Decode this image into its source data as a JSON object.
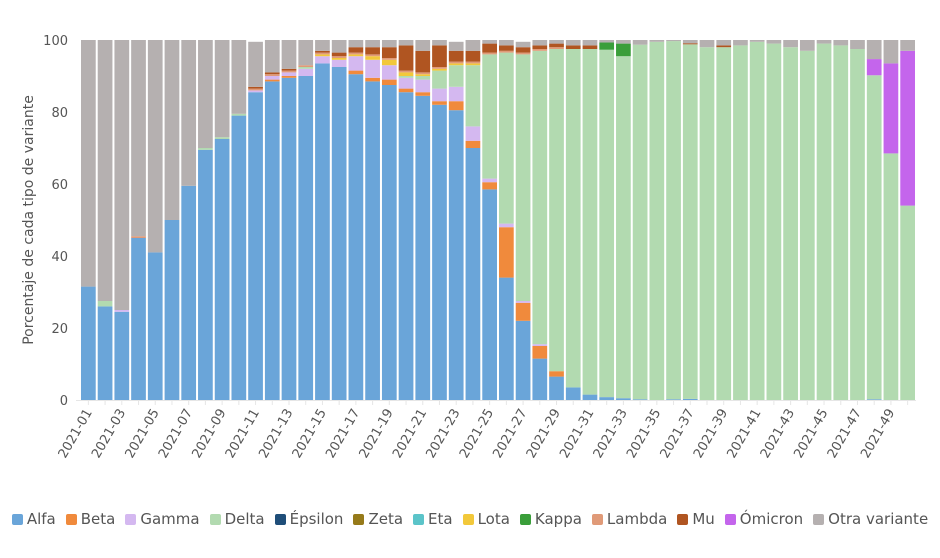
{
  "chart_data": {
    "type": "bar",
    "stacked": true,
    "title": "",
    "xlabel": "",
    "ylabel": "Porcentaje de cada tipo de variante",
    "ylim": [
      0,
      100
    ],
    "yticks": [
      0,
      20,
      40,
      60,
      80,
      100
    ],
    "grid": false,
    "legend_position": "bottom",
    "categories": [
      "2021-01",
      "2021-02",
      "2021-03",
      "2021-04",
      "2021-05",
      "2021-06",
      "2021-07",
      "2021-08",
      "2021-09",
      "2021-10",
      "2021-11",
      "2021-12",
      "2021-13",
      "2021-14",
      "2021-15",
      "2021-16",
      "2021-17",
      "2021-18",
      "2021-19",
      "2021-20",
      "2021-21",
      "2021-22",
      "2021-23",
      "2021-24",
      "2021-25",
      "2021-26",
      "2021-27",
      "2021-28",
      "2021-29",
      "2021-30",
      "2021-31",
      "2021-32",
      "2021-33",
      "2021-34",
      "2021-35",
      "2021-36",
      "2021-37",
      "2021-38",
      "2021-39",
      "2021-40",
      "2021-41",
      "2021-42",
      "2021-43",
      "2021-44",
      "2021-45",
      "2021-46",
      "2021-47",
      "2021-48",
      "2021-49",
      "2021-50"
    ],
    "xtick_labels": [
      "2021-01",
      "2021-03",
      "2021-05",
      "2021-07",
      "2021-09",
      "2021-11",
      "2021-13",
      "2021-15",
      "2021-17",
      "2021-19",
      "2021-21",
      "2021-23",
      "2021-25",
      "2021-27",
      "2021-29",
      "2021-31",
      "2021-33",
      "2021-35",
      "2021-37",
      "2021-39",
      "2021-41",
      "2021-43",
      "2021-45",
      "2021-47",
      "2021-49"
    ],
    "series": [
      {
        "name": "Alfa",
        "color": "#6aa5d9",
        "values": [
          31.5,
          26,
          24.5,
          45,
          41,
          50,
          59.5,
          69.5,
          72.5,
          79,
          85.5,
          88.5,
          89.5,
          90,
          93.5,
          92.5,
          90.5,
          88.5,
          87.5,
          85.5,
          84.5,
          82,
          80.5,
          70,
          58.5,
          34,
          22,
          11.5,
          6.5,
          3.5,
          1.5,
          0.8,
          0.5,
          0.2,
          0,
          0.2,
          0.3,
          0,
          0,
          0,
          0,
          0,
          0,
          0,
          0,
          0,
          0,
          0.2,
          0,
          0
        ]
      },
      {
        "name": "Beta",
        "color": "#f08a3c",
        "values": [
          0,
          0,
          0,
          0,
          0,
          0,
          0,
          0,
          0,
          0,
          0,
          0.5,
          0.5,
          0,
          0,
          0,
          1,
          1,
          1.5,
          1,
          1,
          1,
          2.5,
          2,
          2,
          14,
          5,
          3.5,
          1.5,
          0,
          0,
          0,
          0,
          0,
          0,
          0,
          0,
          0,
          0,
          0,
          0,
          0,
          0,
          0,
          0,
          0,
          0,
          0,
          0,
          0
        ]
      },
      {
        "name": "Gamma",
        "color": "#d4b8f0",
        "values": [
          0,
          0,
          0.5,
          0,
          0,
          0,
          0,
          0,
          0,
          0,
          0.5,
          1,
          1,
          2,
          2,
          2,
          4,
          5,
          4,
          3,
          3.5,
          3.5,
          4,
          4,
          1,
          1,
          0.5,
          0.5,
          0,
          0,
          0,
          0,
          0,
          0,
          0,
          0,
          0,
          0,
          0,
          0,
          0,
          0,
          0,
          0,
          0,
          0,
          0,
          0,
          0,
          0
        ]
      },
      {
        "name": "Delta",
        "color": "#b2dab0",
        "values": [
          0,
          1.5,
          0,
          0,
          0,
          0,
          0,
          0.5,
          0.5,
          0.5,
          0,
          0,
          0,
          0.5,
          0,
          0,
          0,
          0,
          0,
          0.5,
          1,
          5,
          6,
          17,
          34.5,
          47.5,
          68.5,
          81.5,
          89.5,
          94,
          96,
          96.5,
          95,
          98.5,
          99.5,
          99.5,
          98.5,
          98,
          98,
          98.5,
          99.5,
          99,
          98,
          97,
          99,
          98.5,
          97.5,
          90,
          68.5,
          54
        ]
      },
      {
        "name": "Épsilon",
        "color": "#1f4e79",
        "values": [
          0,
          0,
          0,
          0,
          0,
          0,
          0,
          0,
          0,
          0,
          0,
          0,
          0,
          0,
          0,
          0,
          0,
          0,
          0,
          0,
          0,
          0,
          0,
          0,
          0,
          0,
          0,
          0,
          0,
          0,
          0,
          0,
          0,
          0,
          0,
          0,
          0,
          0,
          0,
          0,
          0,
          0,
          0,
          0,
          0,
          0,
          0,
          0,
          0,
          0
        ]
      },
      {
        "name": "Zeta",
        "color": "#967a1a",
        "values": [
          0,
          0,
          0,
          0,
          0,
          0,
          0,
          0,
          0,
          0,
          0,
          0,
          0,
          0,
          0,
          0,
          0,
          0,
          0,
          0,
          0,
          0,
          0,
          0,
          0,
          0,
          0,
          0,
          0,
          0,
          0,
          0,
          0,
          0,
          0,
          0,
          0,
          0,
          0,
          0,
          0,
          0,
          0,
          0,
          0,
          0,
          0,
          0,
          0,
          0
        ]
      },
      {
        "name": "Eta",
        "color": "#5bc4c9",
        "values": [
          0,
          0,
          0,
          0,
          0,
          0,
          0,
          0,
          0,
          0,
          0,
          0,
          0,
          0,
          0,
          0,
          0,
          0,
          0,
          0,
          0,
          0,
          0,
          0,
          0,
          0,
          0,
          0,
          0,
          0,
          0,
          0,
          0,
          0,
          0,
          0,
          0,
          0,
          0,
          0,
          0,
          0,
          0,
          0,
          0,
          0,
          0,
          0,
          0,
          0
        ]
      },
      {
        "name": "Lota",
        "color": "#f2c83a",
        "values": [
          0,
          0,
          0,
          0,
          0,
          0,
          0,
          0,
          0,
          0,
          0,
          0,
          0,
          0,
          0.5,
          0.5,
          0.5,
          1,
          1.5,
          1,
          0.5,
          0.5,
          0.5,
          0.5,
          0,
          0,
          0,
          0,
          0,
          0,
          0,
          0,
          0,
          0,
          0,
          0,
          0,
          0,
          0,
          0,
          0,
          0,
          0,
          0,
          0,
          0,
          0,
          0,
          0,
          0
        ]
      },
      {
        "name": "Kappa",
        "color": "#3a9e3a",
        "values": [
          0,
          0,
          0,
          0,
          0,
          0,
          0,
          0,
          0,
          0,
          0,
          0,
          0,
          0,
          0,
          0,
          0,
          0,
          0,
          0,
          0,
          0,
          0,
          0,
          0,
          0,
          0,
          0,
          0,
          0,
          0,
          2,
          3.5,
          0,
          0,
          0,
          0,
          0,
          0,
          0,
          0,
          0,
          0,
          0,
          0,
          0,
          0,
          0,
          0,
          0
        ]
      },
      {
        "name": "Lambda",
        "color": "#e09a78",
        "values": [
          0,
          0,
          0,
          0.5,
          0,
          0,
          0,
          0,
          0,
          0,
          0.5,
          0.5,
          0.5,
          0.5,
          0.5,
          0.5,
          0.5,
          0.5,
          0.5,
          0.5,
          0.5,
          0.5,
          0.5,
          0.5,
          0.5,
          0.5,
          0.5,
          0.5,
          0.5,
          0,
          0,
          0,
          0,
          0,
          0,
          0,
          0,
          0,
          0,
          0,
          0,
          0,
          0,
          0,
          0,
          0,
          0,
          0,
          0,
          0
        ]
      },
      {
        "name": "Mu",
        "color": "#b05521",
        "values": [
          0,
          0,
          0,
          0,
          0,
          0,
          0,
          0,
          0,
          0,
          0.5,
          0.5,
          0.5,
          0,
          0.5,
          1,
          1.5,
          2,
          3,
          7,
          6,
          6,
          3,
          3,
          2.5,
          1.5,
          1.5,
          1,
          1,
          1,
          1,
          0,
          0,
          0,
          0,
          0,
          0.3,
          0,
          0.5,
          0,
          0,
          0,
          0,
          0,
          0,
          0,
          0,
          0,
          0,
          0
        ]
      },
      {
        "name": "Ómicron",
        "color": "#c465ec",
        "values": [
          0,
          0,
          0,
          0,
          0,
          0,
          0,
          0,
          0,
          0,
          0,
          0,
          0,
          0,
          0,
          0,
          0,
          0,
          0,
          0,
          0,
          0,
          0,
          0,
          0,
          0,
          0,
          0,
          0,
          0,
          0,
          0,
          0,
          0,
          0,
          0,
          0,
          0,
          0,
          0,
          0,
          0,
          0,
          0,
          0,
          0,
          0,
          4.5,
          25,
          43
        ]
      },
      {
        "name": "Otra variante",
        "color": "#b5b0b0",
        "values": [
          68.5,
          72.5,
          75,
          54.5,
          59,
          50,
          40.5,
          30,
          27,
          20.5,
          12.5,
          9,
          8,
          7,
          3,
          3.5,
          2,
          2,
          2,
          1.5,
          3,
          1.5,
          2.5,
          3,
          1,
          1.5,
          1.5,
          1.5,
          1,
          1.5,
          1.5,
          0.7,
          1,
          1.3,
          0.5,
          0.3,
          0.9,
          2,
          1.5,
          1.5,
          0.5,
          1,
          2,
          3,
          1,
          1.5,
          2.5,
          5.3,
          6.5,
          3
        ]
      }
    ]
  }
}
